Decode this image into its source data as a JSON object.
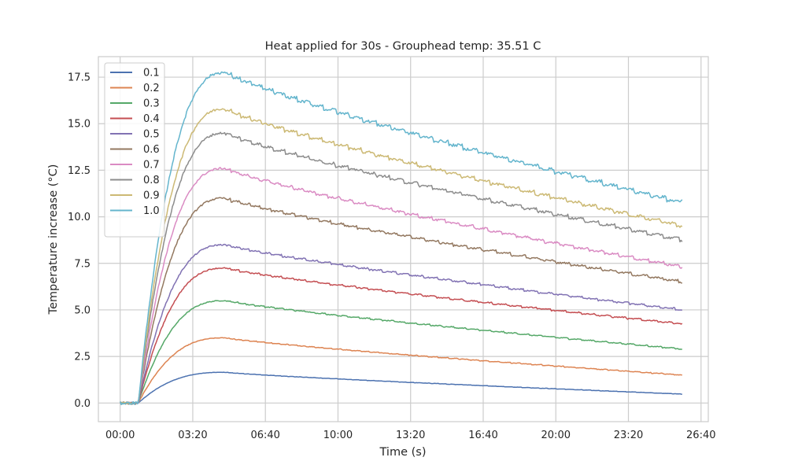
{
  "chart_data": {
    "type": "line",
    "title": "Heat applied for 30s - Grouphead temp: 35.51 C",
    "xlabel": "Time (s)",
    "ylabel": "Temperature increase (°C)",
    "xlim": [
      -60,
      1620
    ],
    "ylim": [
      -1.0,
      18.6
    ],
    "x_ticks": [
      0,
      200,
      400,
      600,
      800,
      1000,
      1200,
      1400,
      1600
    ],
    "x_tick_labels": [
      "00:00",
      "03:20",
      "06:40",
      "10:00",
      "13:20",
      "16:40",
      "20:00",
      "23:20",
      "26:40"
    ],
    "y_ticks": [
      0.0,
      2.5,
      5.0,
      7.5,
      10.0,
      12.5,
      15.0,
      17.5
    ],
    "y_tick_labels": [
      "0.0",
      "2.5",
      "5.0",
      "7.5",
      "10.0",
      "12.5",
      "15.0",
      "17.5"
    ],
    "grid": true,
    "legend_position": "top-left",
    "x_end": 1550,
    "series": [
      {
        "name": "0.1",
        "color": "#4c72b0",
        "peak": 1.65,
        "end": 0.48
      },
      {
        "name": "0.2",
        "color": "#dd8452",
        "peak": 3.5,
        "end": 1.5
      },
      {
        "name": "0.3",
        "color": "#55a868",
        "peak": 5.5,
        "end": 2.9
      },
      {
        "name": "0.4",
        "color": "#c44e52",
        "peak": 7.25,
        "end": 4.25
      },
      {
        "name": "0.5",
        "color": "#8172b3",
        "peak": 8.5,
        "end": 5.0
      },
      {
        "name": "0.6",
        "color": "#937860",
        "peak": 11.0,
        "end": 6.5
      },
      {
        "name": "0.7",
        "color": "#da8bc3",
        "peak": 12.6,
        "end": 7.3
      },
      {
        "name": "0.8",
        "color": "#8c8c8c",
        "peak": 14.5,
        "end": 8.75
      },
      {
        "name": "0.9",
        "color": "#ccb974",
        "peak": 15.8,
        "end": 9.5
      },
      {
        "name": "1.0",
        "color": "#64b5cd",
        "peak": 17.75,
        "end": 10.75
      }
    ]
  }
}
